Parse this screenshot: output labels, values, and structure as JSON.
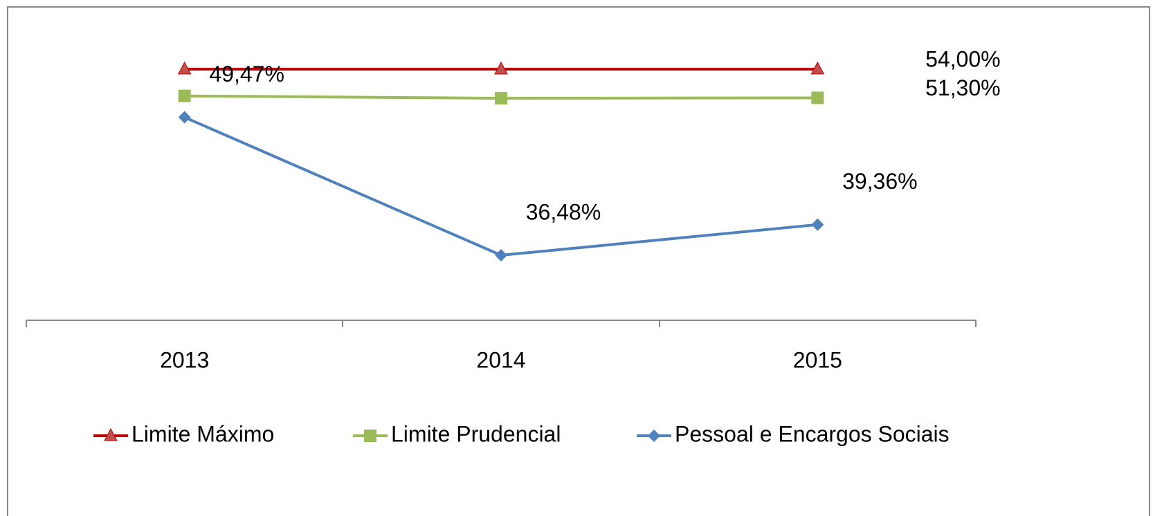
{
  "chart_data": {
    "type": "line",
    "categories": [
      "2013",
      "2014",
      "2015"
    ],
    "series": [
      {
        "name": "Limite Máximo",
        "color": "#c00000",
        "marker": "triangle",
        "marker_color": "#c0504d",
        "values": [
          54,
          54,
          54
        ],
        "value_labels": [
          null,
          null,
          "54,00%"
        ]
      },
      {
        "name": "Limite Prudencial",
        "color": "#9bbb59",
        "marker": "square",
        "marker_color": "#9bbb59",
        "values": [
          51.48,
          51.26,
          51.3
        ],
        "value_labels": [
          null,
          null,
          "51,30%"
        ]
      },
      {
        "name": "Pessoal e Encargos Sociais",
        "color": "#4f81bd",
        "marker": "diamond",
        "marker_color": "#4f81bd",
        "values": [
          49.47,
          36.48,
          39.36
        ],
        "value_labels": [
          "49,47%",
          "36,48%",
          "39,36%"
        ]
      }
    ],
    "legend": "bottom"
  }
}
